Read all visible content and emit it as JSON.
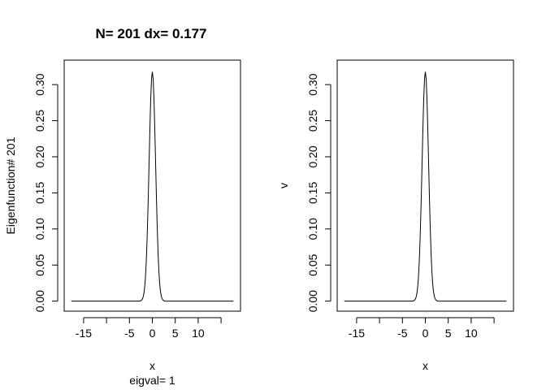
{
  "title": "N= 201 dx= 0.177",
  "chart_data": [
    {
      "type": "line",
      "title": "N= 201 dx= 0.177",
      "xlabel": "x",
      "ylabel": "Eigenfunction# 201",
      "sub": "eigval= 1",
      "xlim": [
        -17.7,
        17.7
      ],
      "ylim": [
        0,
        0.32
      ],
      "xticks": [
        -15,
        -10,
        -5,
        0,
        5,
        10,
        15
      ],
      "xtick_labels": [
        "-15",
        "",
        "-5",
        "0",
        "5",
        "10",
        ""
      ],
      "yticks": [
        0.0,
        0.05,
        0.1,
        0.15,
        0.2,
        0.25,
        0.3
      ],
      "ytick_labels": [
        "0.00",
        "0.05",
        "0.10",
        "0.15",
        "0.20",
        "0.25",
        "0.30"
      ],
      "series": [
        {
          "function": "gaussian",
          "peak": 0.3178,
          "center": 0,
          "sigma": 0.707
        }
      ]
    },
    {
      "type": "line",
      "title": "",
      "xlabel": "x",
      "ylabel": "v",
      "sub": "",
      "xlim": [
        -17.7,
        17.7
      ],
      "ylim": [
        0,
        0.32
      ],
      "xticks": [
        -15,
        -10,
        -5,
        0,
        5,
        10,
        15
      ],
      "xtick_labels": [
        "-15",
        "",
        "-5",
        "0",
        "5",
        "10",
        ""
      ],
      "yticks": [
        0.0,
        0.05,
        0.1,
        0.15,
        0.2,
        0.25,
        0.3
      ],
      "ytick_labels": [
        "0.00",
        "0.05",
        "0.10",
        "0.15",
        "0.20",
        "0.25",
        "0.30"
      ],
      "series": [
        {
          "function": "gaussian",
          "peak": 0.3178,
          "center": 0,
          "sigma": 0.707
        }
      ]
    }
  ]
}
